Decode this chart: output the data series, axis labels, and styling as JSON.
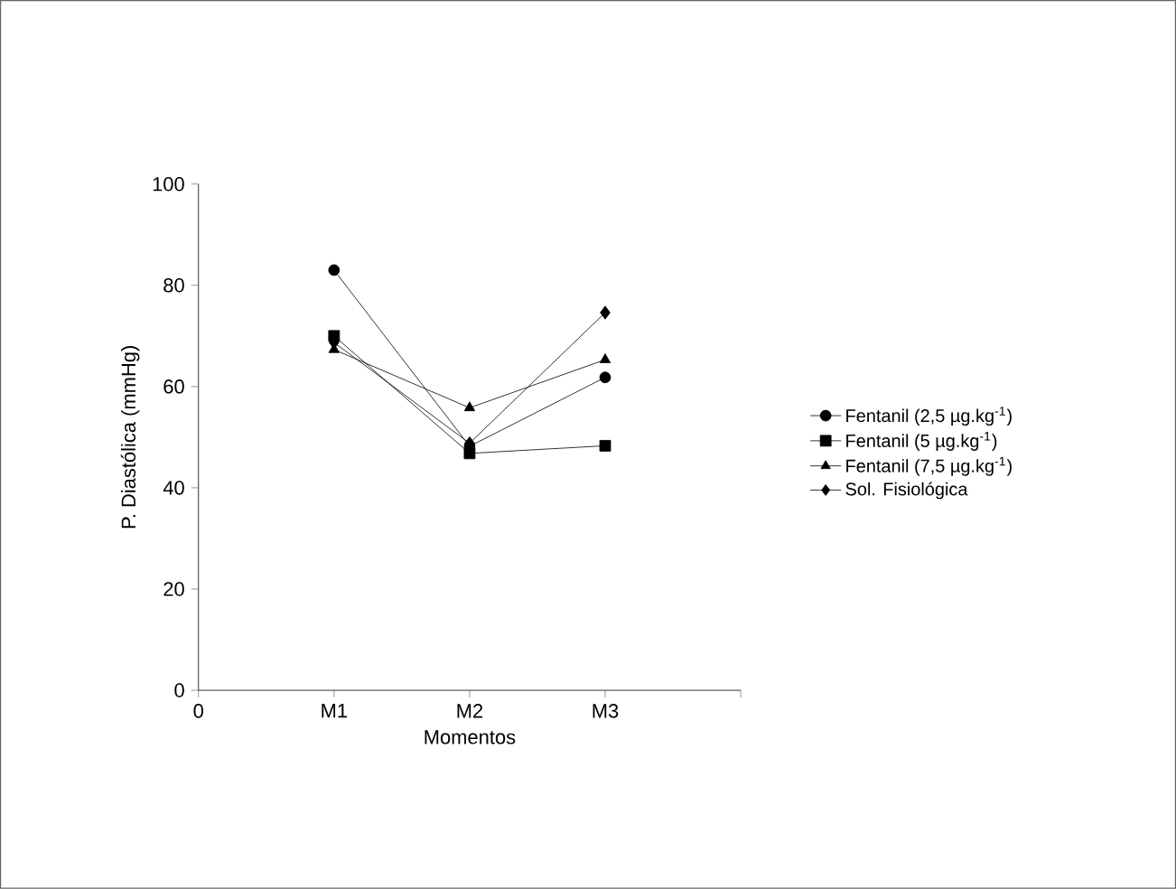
{
  "chart_data": {
    "type": "line",
    "xlabel": "Momentos",
    "ylabel": "P. Diastólica (mmHg)",
    "categories": [
      "0",
      "M1",
      "M2",
      "M3",
      null
    ],
    "ylim": [
      0,
      100
    ],
    "yticks": [
      0,
      20,
      40,
      60,
      80,
      100
    ],
    "grid": false,
    "legend": "right",
    "line_style": "solid",
    "series": [
      {
        "name": "Fentanil (2,5 µg.kg$^{-1}$)",
        "color": "#000000",
        "marker": "circle",
        "values": [
          null,
          83,
          48.2,
          61.8,
          null
        ]
      },
      {
        "name": "Fentanil (5 µg.kg$^{-1}$)",
        "color": "#000000",
        "marker": "square",
        "values": [
          null,
          70,
          46.8,
          48.3,
          null
        ]
      },
      {
        "name": "Fentanil (7,5 µg.kg$^{-1}$)",
        "color": "#000000",
        "marker": "triangle",
        "values": [
          null,
          67.3,
          55.8,
          65.3,
          null
        ]
      },
      {
        "name": "Sol. Fisiológica",
        "color": "#000000",
        "marker": "diamond",
        "values": [
          null,
          68.7,
          48.8,
          74.6,
          null
        ]
      }
    ]
  }
}
